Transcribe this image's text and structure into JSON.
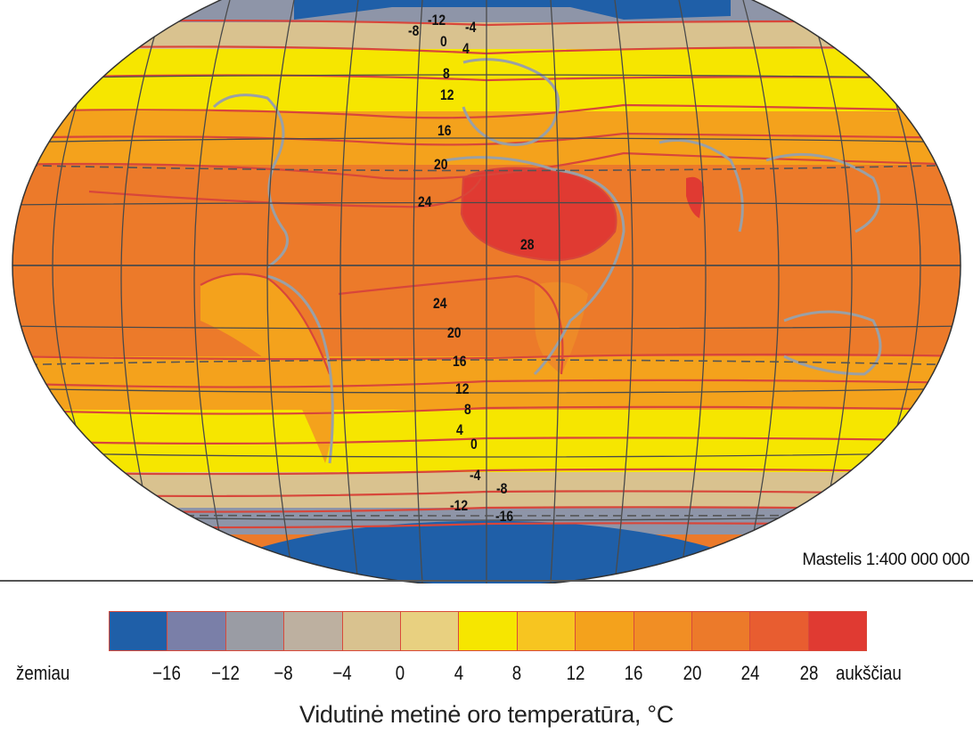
{
  "map": {
    "scale_label": "Mastelis 1:400 000 000",
    "isotherm_labels": [
      {
        "text": "-12"
      },
      {
        "text": "-8"
      },
      {
        "text": "-4"
      },
      {
        "text": "0"
      },
      {
        "text": "4"
      },
      {
        "text": "8"
      },
      {
        "text": "12"
      },
      {
        "text": "16"
      },
      {
        "text": "20"
      },
      {
        "text": "24"
      },
      {
        "text": "28"
      },
      {
        "text": "24"
      },
      {
        "text": "20"
      },
      {
        "text": "16"
      },
      {
        "text": "12"
      },
      {
        "text": "8"
      },
      {
        "text": "4"
      },
      {
        "text": "0"
      },
      {
        "text": "-4"
      },
      {
        "text": "-8"
      },
      {
        "text": "-12"
      },
      {
        "text": "-16"
      }
    ],
    "zone_colors": {
      "polar": "#1f5fa8",
      "cold": "#8e95a8",
      "cool": "#d9c28f",
      "mild": "#f6e600",
      "warm": "#f4a21c",
      "hot": "#ec7a2a",
      "hottest": "#e03a32",
      "isoline": "#d8463a",
      "coast": "#9aa0a6",
      "graticule": "#4a4a4a"
    }
  },
  "legend": {
    "low_label": "žemiau",
    "high_label": "aukščiau",
    "colors": [
      "#1f5fa8",
      "#7a7fa8",
      "#9a9ca4",
      "#bdb0a0",
      "#d9c28f",
      "#e8d080",
      "#f6e600",
      "#f7c520",
      "#f4a21c",
      "#f18e24",
      "#ec7a2a",
      "#e85d30",
      "#e03a32"
    ],
    "ticks": [
      "−16",
      "−12",
      "−8",
      "−4",
      "0",
      "4",
      "8",
      "12",
      "16",
      "20",
      "24",
      "28"
    ]
  },
  "caption": "Vidutinė metinė oro temperatūra, °C"
}
